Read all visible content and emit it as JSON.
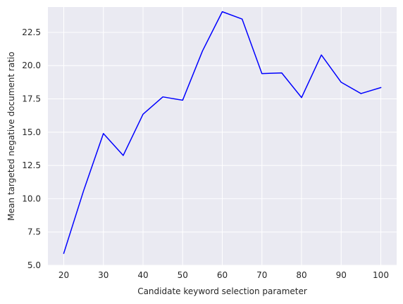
{
  "chart_data": {
    "type": "line",
    "title": "",
    "xlabel": "Candidate keyword selection parameter",
    "ylabel": "Mean targeted negative document ratio",
    "xlim": [
      16,
      104
    ],
    "ylim": [
      5.0,
      24.4
    ],
    "xticks": [
      "20",
      "30",
      "40",
      "50",
      "60",
      "70",
      "80",
      "90",
      "100"
    ],
    "yticks": [
      "5.0",
      "7.5",
      "10.0",
      "12.5",
      "15.0",
      "17.5",
      "20.0",
      "22.5"
    ],
    "grid": true,
    "background": "#eaeaf2",
    "series": [
      {
        "color": "#0000ff",
        "x": [
          20,
          25,
          30,
          35,
          40,
          45,
          50,
          55,
          60,
          65,
          70,
          75,
          80,
          85,
          90,
          95,
          100
        ],
        "y": [
          5.9,
          10.6,
          14.9,
          13.25,
          16.35,
          17.65,
          17.4,
          21.1,
          24.05,
          23.5,
          19.4,
          19.45,
          17.6,
          20.8,
          18.75,
          17.9,
          18.35
        ]
      }
    ]
  }
}
